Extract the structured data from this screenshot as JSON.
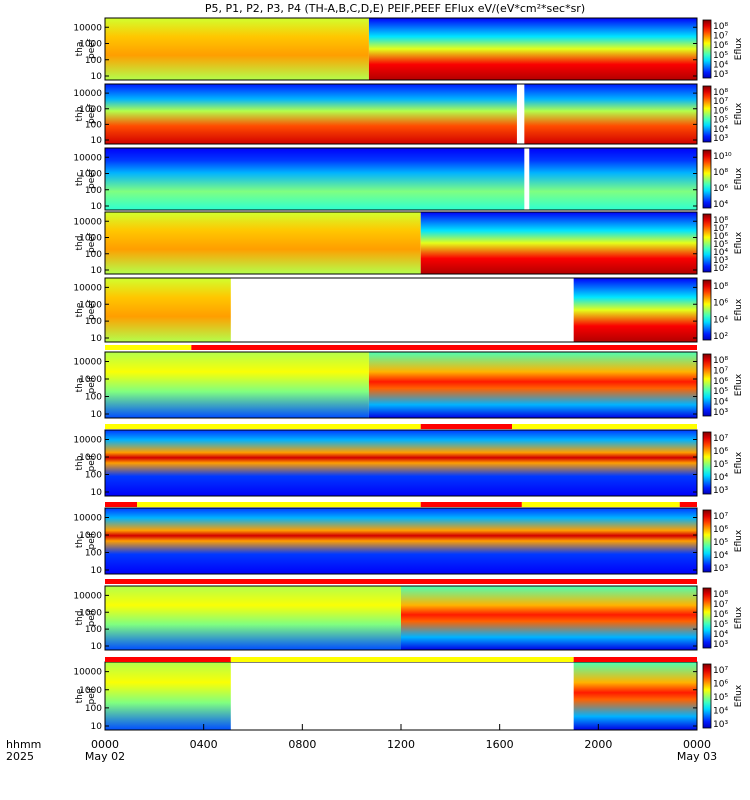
{
  "chart_data": {
    "type": "heatmap",
    "title": "P5, P1, P2, P3, P4 (TH-A,B,C,D,E) PEIF,PEEF EFlux eV/(eV*cm²*sec*sr)",
    "x_label": "hhmm",
    "x_sublabels": [
      "2025",
      "May 02",
      "May 03"
    ],
    "x_ticks": [
      "0000",
      "0400",
      "0800",
      "1200",
      "1600",
      "2000",
      "0000"
    ],
    "x_range_hours": [
      0,
      24
    ],
    "y_scale": "log",
    "y_ticks": [
      "10",
      "100",
      "1000",
      "10000"
    ],
    "colorbar_label": "Eflux",
    "panels": [
      {
        "label_top": "tha",
        "label_bottom": "peef",
        "species": "electron",
        "cbar_ticks": [
          "10⁸",
          "10⁷",
          "10⁶",
          "10⁵",
          "10⁴",
          "10³"
        ],
        "gap_hours": null
      },
      {
        "label_top": "thb",
        "label_bottom": "peef",
        "species": "electron",
        "cbar_ticks": [
          "10⁸",
          "10⁷",
          "10⁶",
          "10⁵",
          "10⁴",
          "10³"
        ],
        "gap_hours": [
          16.7,
          17.0
        ]
      },
      {
        "label_top": "thc",
        "label_bottom": "peef",
        "species": "electron",
        "cbar_ticks": [
          "10¹⁰",
          "10⁸",
          "10⁶",
          "10⁴"
        ],
        "gap_hours": [
          17.0,
          17.2
        ]
      },
      {
        "label_top": "thd",
        "label_bottom": "peef",
        "species": "electron",
        "cbar_ticks": [
          "10⁸",
          "10⁷",
          "10⁶",
          "10⁵",
          "10⁴",
          "10³",
          "10²"
        ],
        "gap_hours": null
      },
      {
        "label_top": "the",
        "label_bottom": "peef",
        "species": "electron",
        "cbar_ticks": [
          "10⁸",
          "10⁶",
          "10⁴",
          "10²"
        ],
        "gap_hours": [
          5.1,
          19.0
        ]
      },
      {
        "label_top": "tha",
        "label_bottom": "peif",
        "species": "ion",
        "cbar_ticks": [
          "10⁸",
          "10⁷",
          "10⁶",
          "10⁵",
          "10⁴",
          "10³"
        ],
        "gap_hours": null
      },
      {
        "label_top": "thb",
        "label_bottom": "peif",
        "species": "ion",
        "cbar_ticks": [
          "10⁷",
          "10⁶",
          "10⁵",
          "10⁴",
          "10³"
        ],
        "gap_hours": null
      },
      {
        "label_top": "thc",
        "label_bottom": "peif",
        "species": "ion",
        "cbar_ticks": [
          "10⁷",
          "10⁶",
          "10⁵",
          "10⁴",
          "10³"
        ],
        "gap_hours": null
      },
      {
        "label_top": "thd",
        "label_bottom": "peif",
        "species": "ion",
        "cbar_ticks": [
          "10⁸",
          "10⁷",
          "10⁶",
          "10⁵",
          "10⁴",
          "10³"
        ],
        "gap_hours": null
      },
      {
        "label_top": "the",
        "label_bottom": "peif",
        "species": "ion",
        "cbar_ticks": [
          "10⁷",
          "10⁶",
          "10⁵",
          "10⁴",
          "10³"
        ],
        "gap_hours": [
          5.1,
          19.0
        ]
      }
    ],
    "mode_bars": [
      {
        "segments": [
          [
            0,
            3.5,
            "#ffff00"
          ],
          [
            3.5,
            24,
            "#ff0000"
          ]
        ]
      },
      {
        "segments": [
          [
            0,
            12.8,
            "#ffff00"
          ],
          [
            12.8,
            16.5,
            "#ff0000"
          ],
          [
            16.5,
            24,
            "#ffff00"
          ]
        ]
      },
      {
        "segments": [
          [
            0,
            1.3,
            "#ff0000"
          ],
          [
            1.3,
            12.8,
            "#ffff00"
          ],
          [
            12.8,
            16.9,
            "#ff0000"
          ],
          [
            16.9,
            23.3,
            "#ffff00"
          ],
          [
            23.3,
            24,
            "#ff0000"
          ]
        ]
      },
      {
        "segments": [
          [
            0,
            24,
            "#ff0000"
          ]
        ]
      },
      {
        "segments": [
          [
            0,
            5.1,
            "#ff0000"
          ],
          [
            5.1,
            19.0,
            "#ffff00"
          ],
          [
            19.0,
            24,
            "#ff0000"
          ]
        ]
      }
    ]
  }
}
